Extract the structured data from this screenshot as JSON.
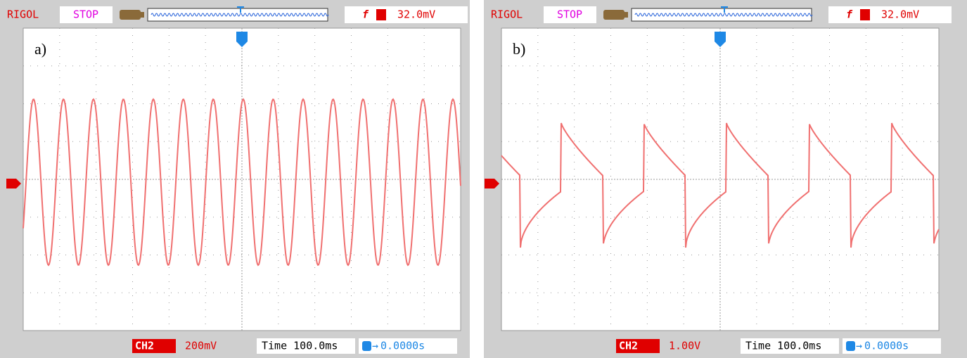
{
  "panels": [
    {
      "label": "a)",
      "brand": "RIGOL",
      "status": "STOP",
      "trigger_level": "32.0mV",
      "channel": "CH2",
      "volts_per_div": "200mV",
      "timebase": "Time 100.0ms",
      "trigger_offset": "0.0000s"
    },
    {
      "label": "b)",
      "brand": "RIGOL",
      "status": "STOP",
      "trigger_level": "32.0mV",
      "channel": "CH2",
      "volts_per_div": "1.00V",
      "timebase": "Time 100.0ms",
      "trigger_offset": "0.0000s"
    }
  ]
}
